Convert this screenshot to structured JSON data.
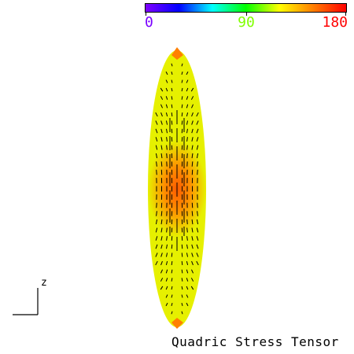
{
  "title": "Quadric Stress Tensor",
  "colorbar": {
    "min_label": "0",
    "mid_label": "90",
    "max_label": "180",
    "min_color": "#7a00ff",
    "mid_color": "#7fff00",
    "max_color": "#ff0000",
    "stops": [
      "#8000ff",
      "#0000ff",
      "#00ffff",
      "#00ff00",
      "#ffff00",
      "#ff8000",
      "#ff0000"
    ]
  },
  "axis": {
    "label": "z"
  },
  "surface": {
    "edge_color": "#e6f000",
    "mid_color": "#ff9000",
    "core_color": "#ff5a00",
    "tip_color": "#ff8000",
    "glyph_color": "#000000"
  }
}
